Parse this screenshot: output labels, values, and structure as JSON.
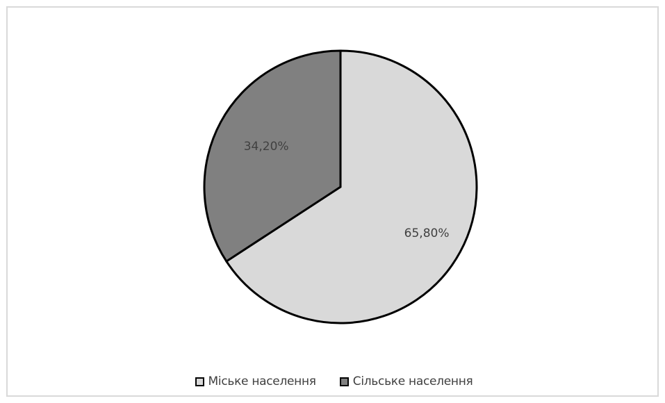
{
  "chart_data": {
    "type": "pie",
    "title": "",
    "categories": [
      "Міське населення",
      "Сільське населення"
    ],
    "values": [
      65.8,
      34.2
    ],
    "data_labels": [
      "65,80%",
      "34,20%"
    ],
    "colors": [
      "#d9d9d9",
      "#808080"
    ],
    "outline_color": "#000000",
    "legend_position": "bottom"
  },
  "legend": {
    "items": [
      {
        "label": "Міське населення",
        "color": "#d9d9d9"
      },
      {
        "label": "Сільське населення",
        "color": "#808080"
      }
    ]
  }
}
